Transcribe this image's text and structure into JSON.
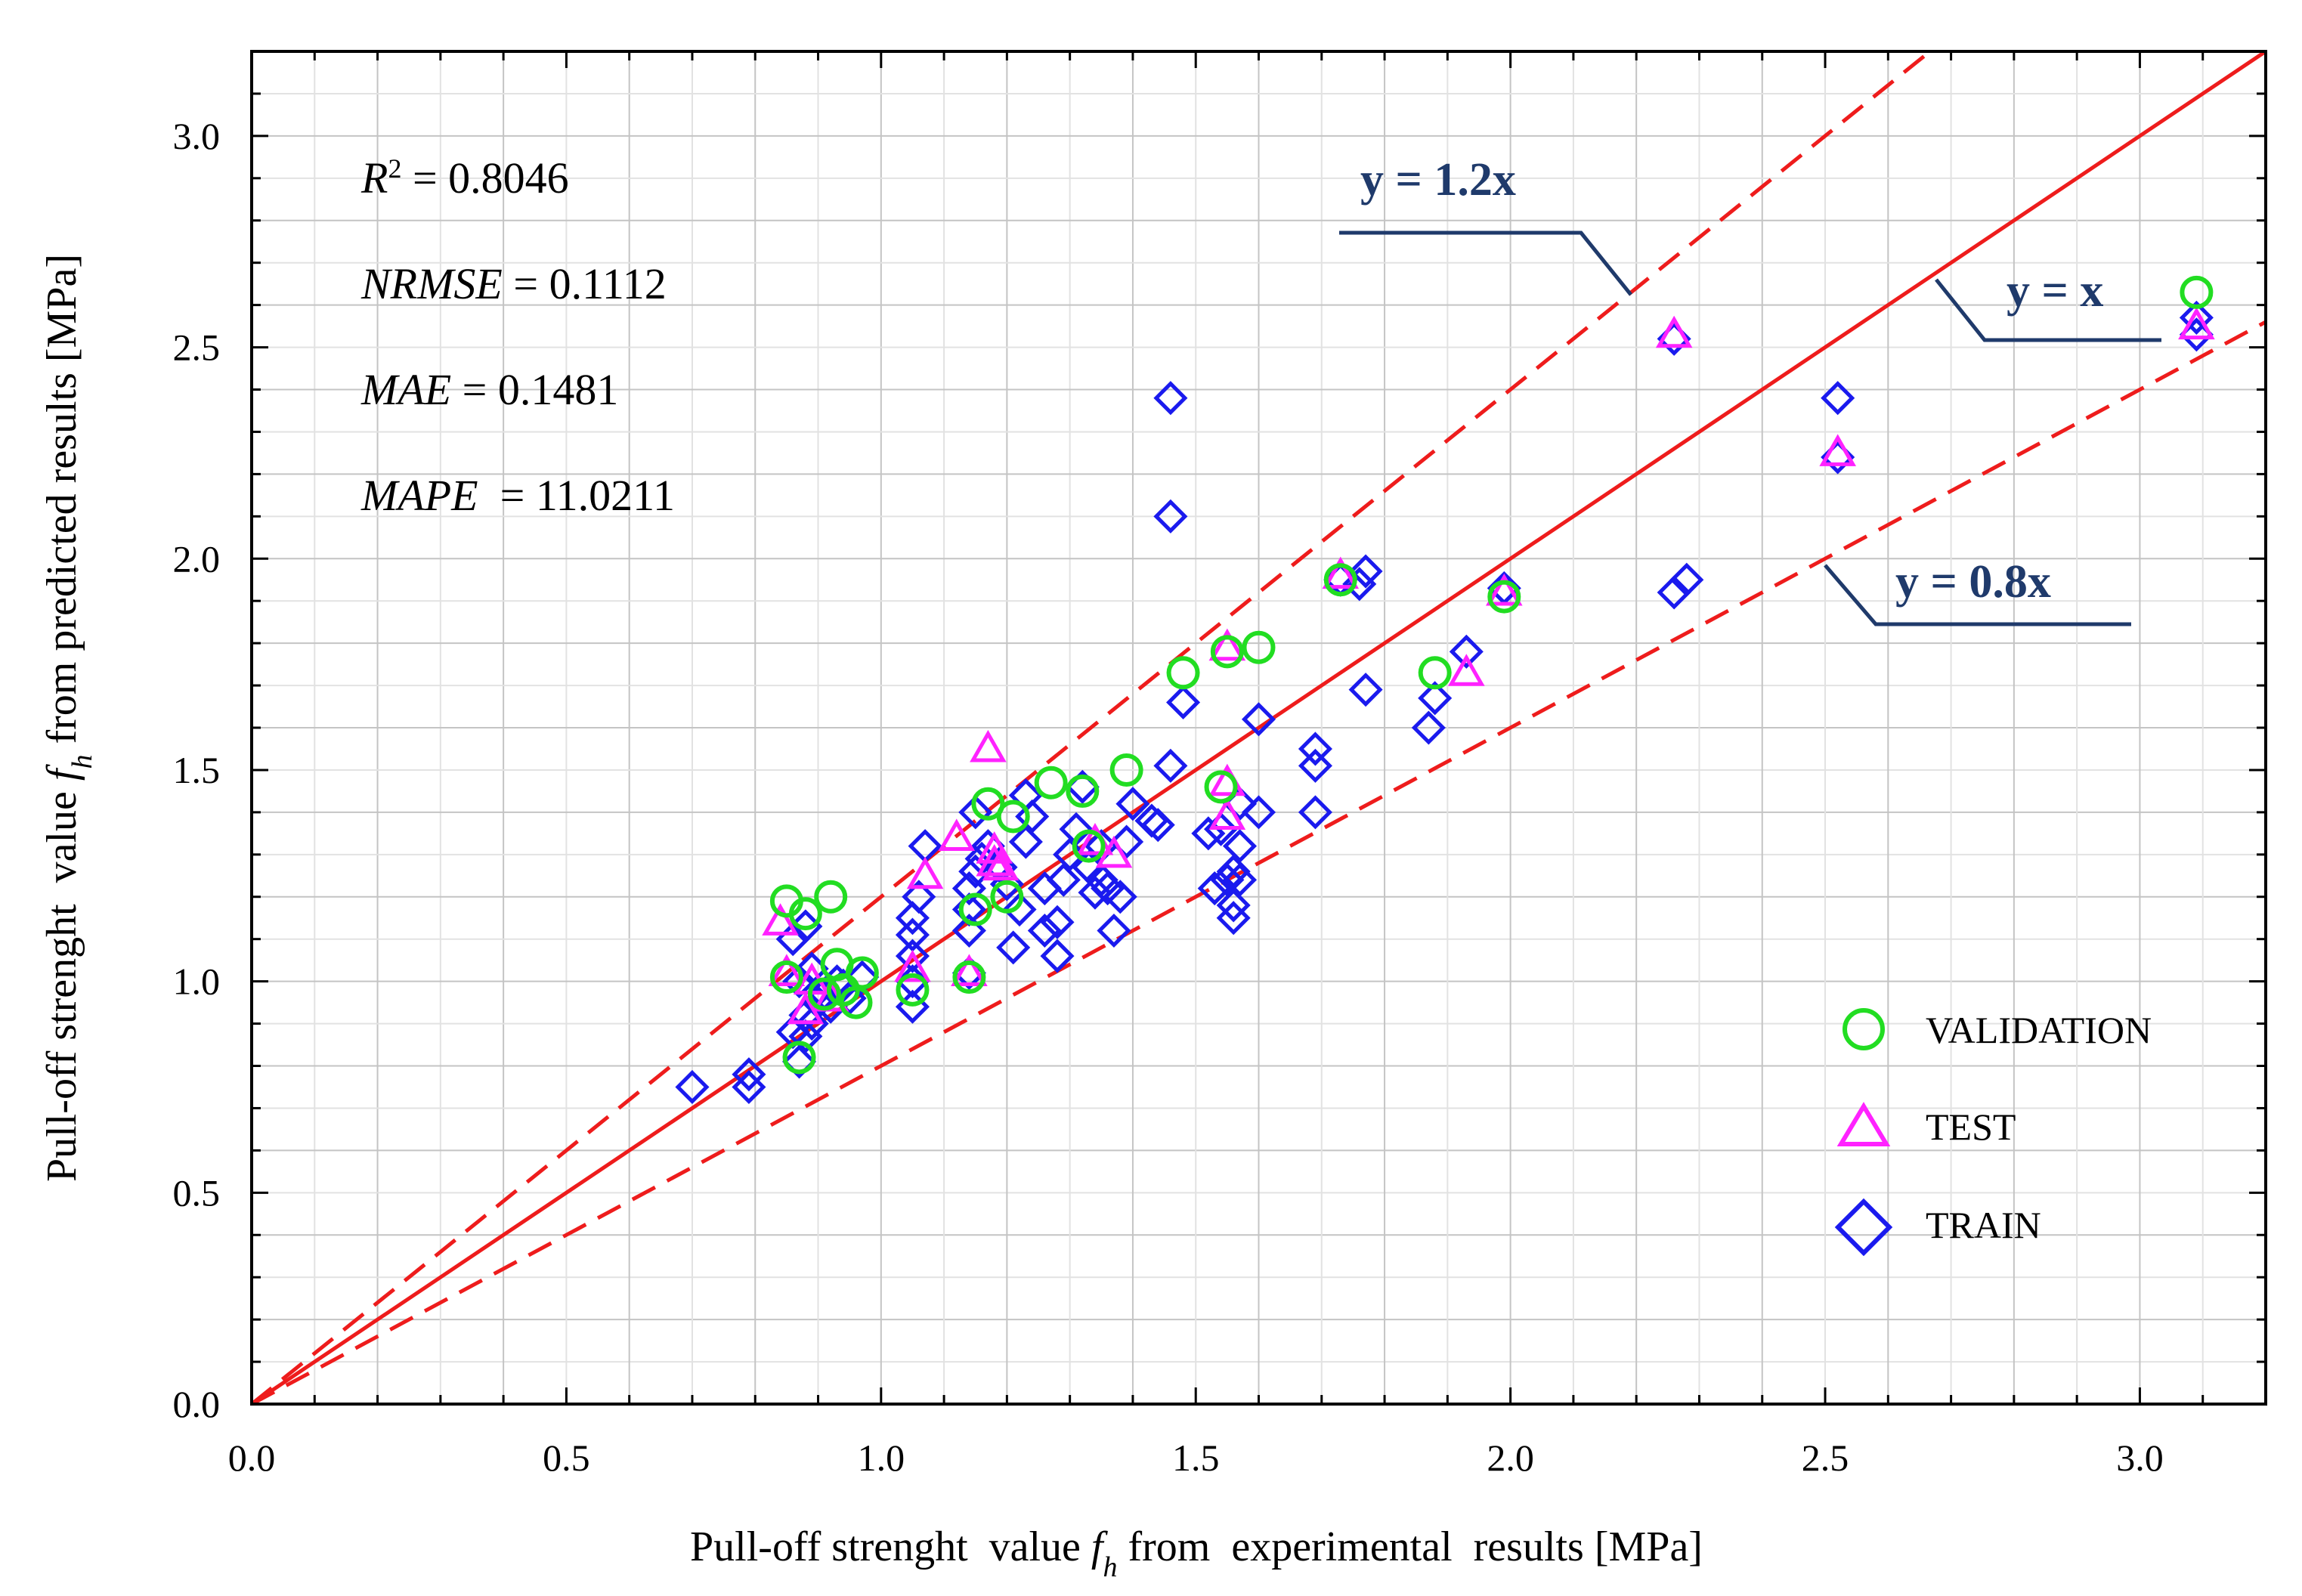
{
  "chart_data": {
    "type": "scatter",
    "xlabel_pre": "Pull-off strenght  value ",
    "xlabel_sym": "f",
    "xlabel_sub": "h",
    "xlabel_post": " from  experimental  results [MPa]",
    "ylabel_pre": "Pull-off strenght  value ",
    "ylabel_sym": "f",
    "ylabel_sub": "h",
    "ylabel_post": " from predicted results [MPa]",
    "xlim": [
      0,
      3.2
    ],
    "ylim": [
      0,
      3.2
    ],
    "xticks": [
      "0.0",
      "0.5",
      "1.0",
      "1.5",
      "2.0",
      "2.5",
      "3.0"
    ],
    "yticks": [
      "0.0",
      "0.5",
      "1.0",
      "1.5",
      "2.0",
      "2.5",
      "3.0"
    ],
    "grid": true,
    "stats": {
      "r2_label": "R",
      "r2_sup": "2",
      "r2_value": " = 0.8046",
      "nrmse_label": "NRMSE",
      "nrmse_value": " = 0.1112",
      "mae_label": "MAE",
      "mae_value": " = 0.1481",
      "mape_label": "MAPE",
      "mape_value": "  = 11.0211"
    },
    "reference_lines": [
      {
        "name": "y = x",
        "slope": 1.0,
        "style": "solid",
        "label": "y = x"
      },
      {
        "name": "y = 1.2x",
        "slope": 1.2,
        "style": "dashed",
        "label": "y = 1.2x"
      },
      {
        "name": "y = 0.8x",
        "slope": 0.8,
        "style": "dashed",
        "label": "y = 0.8x"
      }
    ],
    "legend": [
      {
        "name": "VALIDATION",
        "marker": "circle",
        "color": "#22dd22"
      },
      {
        "name": "TEST",
        "marker": "triangle",
        "color": "#ff22ff"
      },
      {
        "name": "TRAIN",
        "marker": "diamond",
        "color": "#1a1aee"
      }
    ],
    "legend_position": "bottom-right",
    "series": [
      {
        "name": "TRAIN",
        "marker": "diamond",
        "color": "#1a1aee",
        "points": [
          [
            0.7,
            0.75
          ],
          [
            0.79,
            0.75
          ],
          [
            0.79,
            0.78
          ],
          [
            0.86,
            0.88
          ],
          [
            0.87,
            0.81
          ],
          [
            0.88,
            0.87
          ],
          [
            0.88,
            0.92
          ],
          [
            0.89,
            0.9
          ],
          [
            0.9,
            0.95
          ],
          [
            0.91,
            0.97
          ],
          [
            0.92,
            0.94
          ],
          [
            0.93,
            1.0
          ],
          [
            0.94,
            0.99
          ],
          [
            0.95,
            0.96
          ],
          [
            0.86,
            1.1
          ],
          [
            0.88,
            1.13
          ],
          [
            0.87,
            1.0
          ],
          [
            0.89,
            1.03
          ],
          [
            0.97,
            1.01
          ],
          [
            1.05,
            0.94
          ],
          [
            1.05,
            1.0
          ],
          [
            1.05,
            1.06
          ],
          [
            1.05,
            1.11
          ],
          [
            1.05,
            1.15
          ],
          [
            1.06,
            1.2
          ],
          [
            1.07,
            1.32
          ],
          [
            1.14,
            1.02
          ],
          [
            1.14,
            1.12
          ],
          [
            1.14,
            1.17
          ],
          [
            1.14,
            1.22
          ],
          [
            1.15,
            1.26
          ],
          [
            1.15,
            1.4
          ],
          [
            1.16,
            1.29
          ],
          [
            1.17,
            1.32
          ],
          [
            1.19,
            1.27
          ],
          [
            1.2,
            1.23
          ],
          [
            1.21,
            1.08
          ],
          [
            1.22,
            1.17
          ],
          [
            1.23,
            1.33
          ],
          [
            1.23,
            1.44
          ],
          [
            1.24,
            1.39
          ],
          [
            1.26,
            1.12
          ],
          [
            1.26,
            1.22
          ],
          [
            1.28,
            1.06
          ],
          [
            1.28,
            1.14
          ],
          [
            1.29,
            1.24
          ],
          [
            1.3,
            1.3
          ],
          [
            1.31,
            1.36
          ],
          [
            1.32,
            1.46
          ],
          [
            1.33,
            1.27
          ],
          [
            1.34,
            1.21
          ],
          [
            1.35,
            1.24
          ],
          [
            1.35,
            1.32
          ],
          [
            1.36,
            1.22
          ],
          [
            1.37,
            1.12
          ],
          [
            1.38,
            1.2
          ],
          [
            1.39,
            1.33
          ],
          [
            1.4,
            1.42
          ],
          [
            1.43,
            1.38
          ],
          [
            1.44,
            1.37
          ],
          [
            1.46,
            1.51
          ],
          [
            1.48,
            1.66
          ],
          [
            1.46,
            2.1
          ],
          [
            1.46,
            2.38
          ],
          [
            1.52,
            1.35
          ],
          [
            1.53,
            1.22
          ],
          [
            1.54,
            1.36
          ],
          [
            1.55,
            1.24
          ],
          [
            1.56,
            1.18
          ],
          [
            1.56,
            1.15
          ],
          [
            1.56,
            1.26
          ],
          [
            1.57,
            1.24
          ],
          [
            1.57,
            1.32
          ],
          [
            1.57,
            1.42
          ],
          [
            1.6,
            1.4
          ],
          [
            1.6,
            1.62
          ],
          [
            1.69,
            1.4
          ],
          [
            1.69,
            1.51
          ],
          [
            1.69,
            1.55
          ],
          [
            1.73,
            1.95
          ],
          [
            1.76,
            1.94
          ],
          [
            1.77,
            1.97
          ],
          [
            1.77,
            1.69
          ],
          [
            1.87,
            1.6
          ],
          [
            1.88,
            1.67
          ],
          [
            1.93,
            1.78
          ],
          [
            1.99,
            1.93
          ],
          [
            2.26,
            2.52
          ],
          [
            2.26,
            1.92
          ],
          [
            2.28,
            1.95
          ],
          [
            2.52,
            2.38
          ],
          [
            2.52,
            2.24
          ],
          [
            3.09,
            2.53
          ],
          [
            3.09,
            2.57
          ]
        ]
      },
      {
        "name": "TEST",
        "marker": "triangle",
        "color": "#ff22ff",
        "points": [
          [
            0.84,
            1.14
          ],
          [
            0.85,
            1.02
          ],
          [
            0.88,
            0.93
          ],
          [
            0.89,
            1.0
          ],
          [
            0.92,
            0.96
          ],
          [
            1.05,
            1.03
          ],
          [
            1.07,
            1.25
          ],
          [
            1.12,
            1.34
          ],
          [
            1.14,
            1.02
          ],
          [
            1.17,
            1.55
          ],
          [
            1.18,
            1.31
          ],
          [
            1.18,
            1.28
          ],
          [
            1.19,
            1.27
          ],
          [
            1.34,
            1.33
          ],
          [
            1.37,
            1.3
          ],
          [
            1.55,
            1.39
          ],
          [
            1.55,
            1.47
          ],
          [
            1.55,
            1.79
          ],
          [
            1.73,
            1.96
          ],
          [
            1.93,
            1.73
          ],
          [
            1.99,
            1.92
          ],
          [
            2.26,
            2.53
          ],
          [
            2.52,
            2.25
          ],
          [
            3.09,
            2.55
          ]
        ]
      },
      {
        "name": "VALIDATION",
        "marker": "circle",
        "color": "#22dd22",
        "points": [
          [
            0.85,
            1.01
          ],
          [
            0.85,
            1.19
          ],
          [
            0.87,
            0.82
          ],
          [
            0.88,
            1.16
          ],
          [
            0.91,
            0.97
          ],
          [
            0.92,
            1.2
          ],
          [
            0.93,
            1.04
          ],
          [
            0.94,
            0.98
          ],
          [
            0.96,
            0.95
          ],
          [
            0.97,
            1.02
          ],
          [
            1.05,
            0.98
          ],
          [
            1.14,
            1.01
          ],
          [
            1.15,
            1.17
          ],
          [
            1.17,
            1.42
          ],
          [
            1.2,
            1.2
          ],
          [
            1.21,
            1.39
          ],
          [
            1.27,
            1.47
          ],
          [
            1.32,
            1.45
          ],
          [
            1.33,
            1.32
          ],
          [
            1.39,
            1.5
          ],
          [
            1.48,
            1.73
          ],
          [
            1.54,
            1.46
          ],
          [
            1.55,
            1.78
          ],
          [
            1.6,
            1.79
          ],
          [
            1.73,
            1.95
          ],
          [
            1.88,
            1.73
          ],
          [
            1.99,
            1.91
          ],
          [
            3.09,
            2.63
          ]
        ]
      }
    ]
  }
}
